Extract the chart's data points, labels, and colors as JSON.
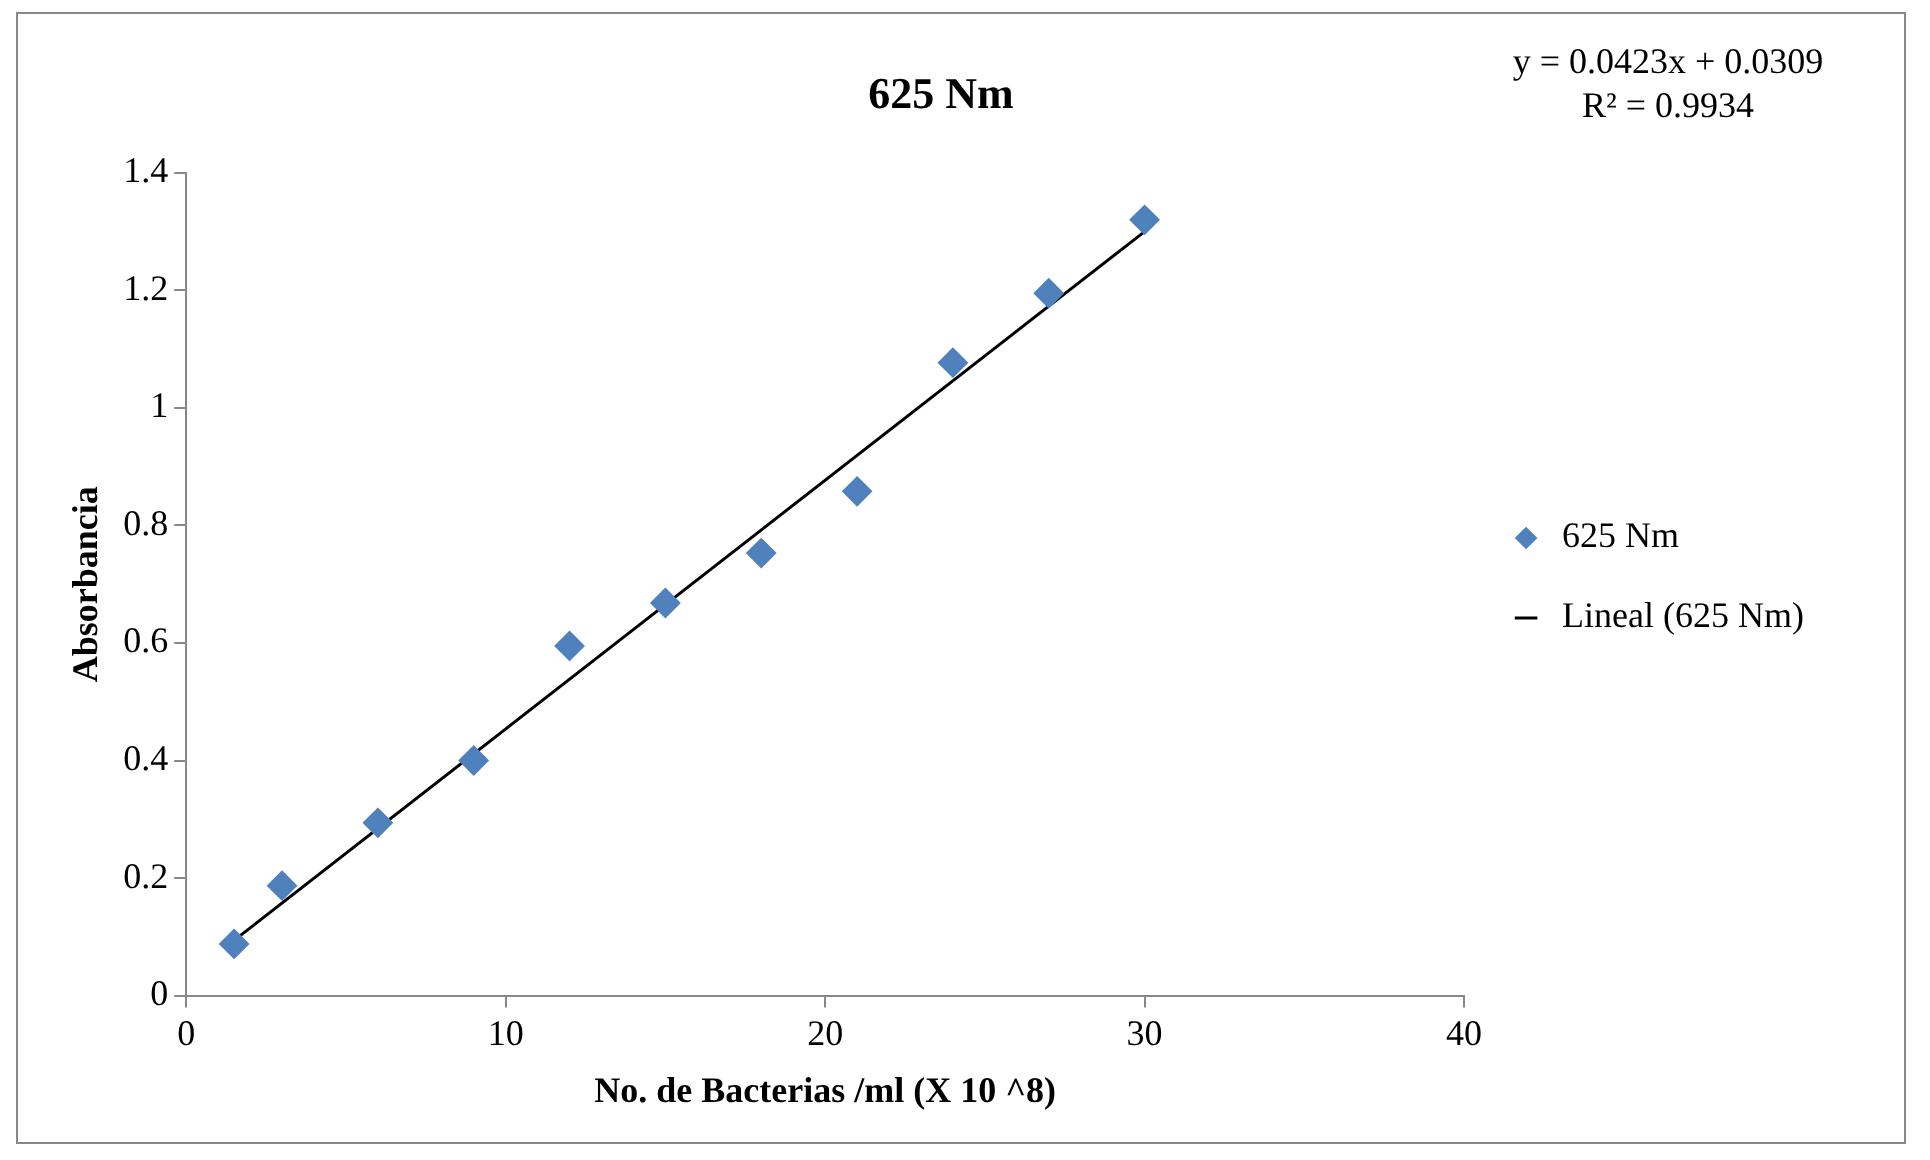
{
  "chart_data": {
    "type": "scatter",
    "title": "625 Nm",
    "xlabel": "No. de Bacterias /ml (X 10 ^8)",
    "ylabel": "Absorbancia",
    "annotations": [
      "y = 0.0423x + 0.0309\nR² = 0.9934"
    ],
    "series": [
      {
        "name": "625 Nm",
        "type": "scatter",
        "color": "#4f81bd",
        "marker": "diamond",
        "x": [
          1.5,
          3,
          6,
          9,
          12,
          15,
          18,
          21,
          24,
          27,
          30
        ],
        "values": [
          0.088,
          0.187,
          0.294,
          0.4,
          0.595,
          0.668,
          0.753,
          0.858,
          1.077,
          1.195,
          1.32
        ]
      },
      {
        "name": "Lineal (625 Nm)",
        "type": "line",
        "color": "#000000",
        "marker": "none",
        "line_style": "solid",
        "x": [
          1.5,
          30
        ],
        "values": [
          0.094,
          1.3
        ]
      }
    ],
    "xlim": [
      0,
      40
    ],
    "xticks": [
      0,
      10,
      20,
      30,
      40
    ],
    "ylim": [
      0,
      1.4
    ],
    "yticks": [
      0,
      0.2,
      0.4,
      0.6,
      0.8,
      1,
      1.2,
      1.4
    ],
    "grid": false,
    "legend": "right"
  }
}
